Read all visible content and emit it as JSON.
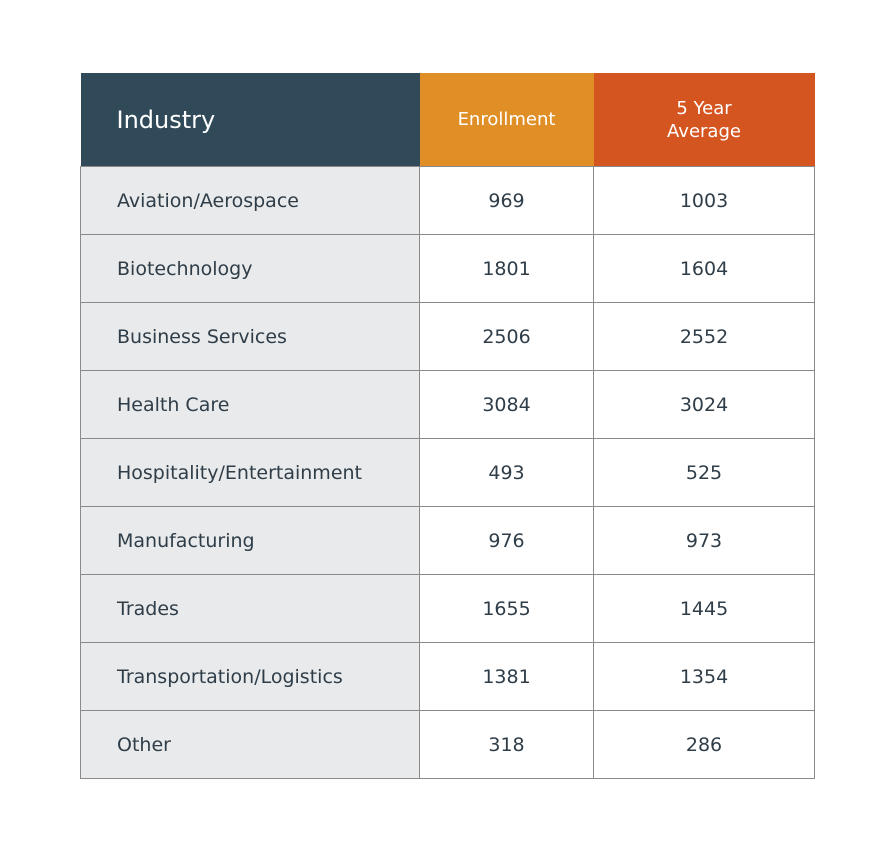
{
  "table": {
    "headers": {
      "industry": "Industry",
      "enrollment": "Enrollment",
      "average_line1": "5 Year",
      "average_line2": "Average"
    },
    "colors": {
      "industry_header": "#314a5a",
      "enrollment_header": "#e08f27",
      "average_header": "#d45520",
      "industry_cell_bg": "#e8eaeb"
    },
    "rows": [
      {
        "industry": "Aviation/Aerospace",
        "enrollment": "969",
        "average": "1003"
      },
      {
        "industry": "Biotechnology",
        "enrollment": "1801",
        "average": "1604"
      },
      {
        "industry": "Business Services",
        "enrollment": "2506",
        "average": "2552"
      },
      {
        "industry": "Health Care",
        "enrollment": "3084",
        "average": "3024"
      },
      {
        "industry": "Hospitality/Entertainment",
        "enrollment": "493",
        "average": "525"
      },
      {
        "industry": "Manufacturing",
        "enrollment": "976",
        "average": "973"
      },
      {
        "industry": "Trades",
        "enrollment": "1655",
        "average": "1445"
      },
      {
        "industry": "Transportation/Logistics",
        "enrollment": "1381",
        "average": "1354"
      },
      {
        "industry": "Other",
        "enrollment": "318",
        "average": "286"
      }
    ]
  }
}
